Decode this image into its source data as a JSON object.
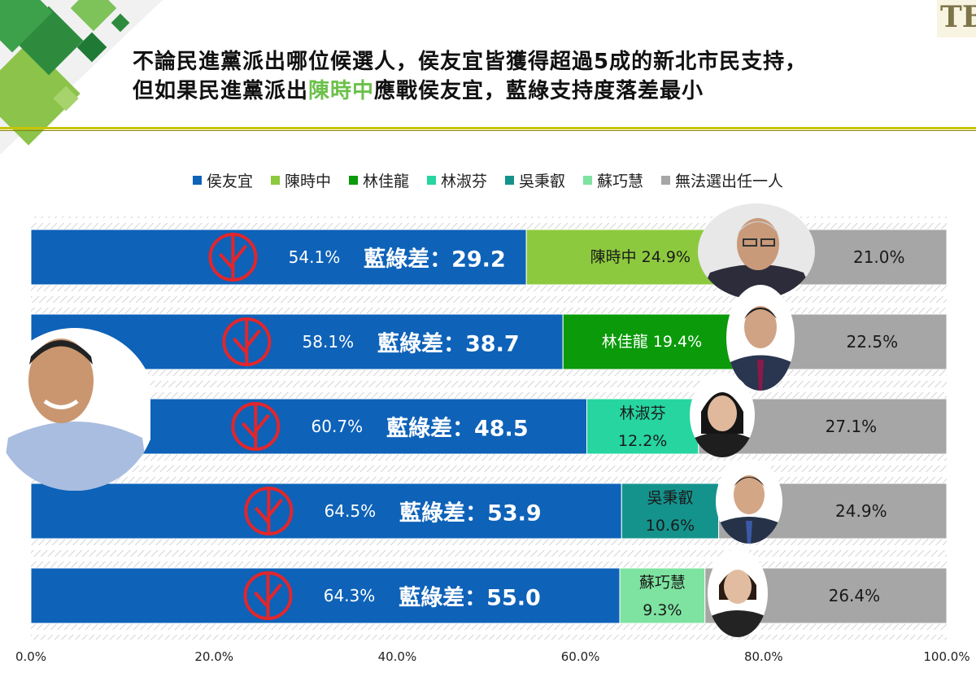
{
  "title": {
    "line1": "不論民進黨派出哪位候選人，侯友宜皆獲得超過5成的新北市民支持，",
    "line2_pre": "但如果民進黨派出",
    "line2_highlight": "陳時中",
    "line2_post": "應戰侯友宜，藍綠支持度落差最小"
  },
  "logo_text": "TB",
  "colors": {
    "hou": "#0e62b8",
    "chen": "#8dc93e",
    "lin_chialung": "#0a9a0a",
    "lin_shufen": "#26d5a0",
    "wu": "#14938c",
    "su": "#7ee3a0",
    "none": "#a6a6a6",
    "highlight": "#6cc04a"
  },
  "chart_data": {
    "type": "bar",
    "orientation": "horizontal",
    "stacked": true,
    "xlim": [
      0,
      100
    ],
    "x_ticks": [
      "0.0%",
      "20.0%",
      "40.0%",
      "60.0%",
      "80.0%",
      "100.0%"
    ],
    "legend": [
      "侯友宜",
      "陳時中",
      "林佳龍",
      "林淑芬",
      "吳秉叡",
      "蘇巧慧",
      "無法選出任一人"
    ],
    "legend_position": "top",
    "rows": [
      {
        "hou": 54.1,
        "hou_label": "54.1%",
        "gap_label": "藍綠差：29.2",
        "opp_name": "陳時中",
        "opp_value": 24.9,
        "opp_line1": "陳時中 24.9%",
        "opp_line2": "",
        "opp_color_key": "chen",
        "none": 21.0,
        "none_label": "21.0%"
      },
      {
        "hou": 58.1,
        "hou_label": "58.1%",
        "gap_label": "藍綠差：38.7",
        "opp_name": "林佳龍",
        "opp_value": 19.4,
        "opp_line1": "林佳龍 19.4%",
        "opp_line2": "",
        "opp_color_key": "lin_chialung",
        "none": 22.5,
        "none_label": "22.5%"
      },
      {
        "hou": 60.7,
        "hou_label": "60.7%",
        "gap_label": "藍綠差：48.5",
        "opp_name": "林淑芬",
        "opp_value": 12.2,
        "opp_line1": "林淑芬",
        "opp_line2": "12.2%",
        "opp_color_key": "lin_shufen",
        "none": 27.1,
        "none_label": "27.1%"
      },
      {
        "hou": 64.5,
        "hou_label": "64.5%",
        "gap_label": "藍綠差：53.9",
        "opp_name": "吳秉叡",
        "opp_value": 10.6,
        "opp_line1": "吳秉叡",
        "opp_line2": "10.6%",
        "opp_color_key": "wu",
        "none": 24.9,
        "none_label": "24.9%"
      },
      {
        "hou": 64.3,
        "hou_label": "64.3%",
        "gap_label": "藍綠差：55.0",
        "opp_name": "蘇巧慧",
        "opp_value": 9.3,
        "opp_line1": "蘇巧慧",
        "opp_line2": "9.3%",
        "opp_color_key": "su",
        "none": 26.4,
        "none_label": "26.4%"
      }
    ]
  }
}
